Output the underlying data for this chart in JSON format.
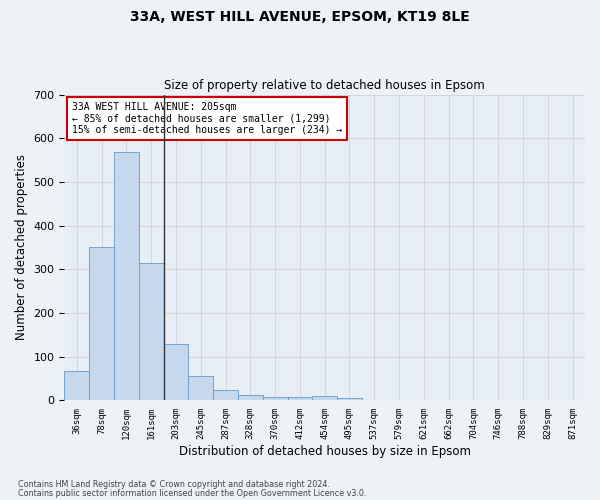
{
  "title": "33A, WEST HILL AVENUE, EPSOM, KT19 8LE",
  "subtitle": "Size of property relative to detached houses in Epsom",
  "xlabel": "Distribution of detached houses by size in Epsom",
  "ylabel": "Number of detached properties",
  "footnote1": "Contains HM Land Registry data © Crown copyright and database right 2024.",
  "footnote2": "Contains public sector information licensed under the Open Government Licence v3.0.",
  "annotation_line1": "33A WEST HILL AVENUE: 205sqm",
  "annotation_line2": "← 85% of detached houses are smaller (1,299)",
  "annotation_line3": "15% of semi-detached houses are larger (234) →",
  "bin_labels": [
    "36sqm",
    "78sqm",
    "120sqm",
    "161sqm",
    "203sqm",
    "245sqm",
    "287sqm",
    "328sqm",
    "370sqm",
    "412sqm",
    "454sqm",
    "495sqm",
    "537sqm",
    "579sqm",
    "621sqm",
    "662sqm",
    "704sqm",
    "746sqm",
    "788sqm",
    "829sqm",
    "871sqm"
  ],
  "bar_values": [
    68,
    350,
    568,
    315,
    130,
    55,
    25,
    13,
    7,
    7,
    10,
    5,
    0,
    0,
    0,
    0,
    0,
    0,
    0,
    0,
    0
  ],
  "bar_color": "#c5d8ed",
  "bar_edge_color": "#6699cc",
  "vline_x_index": 4,
  "vline_color": "#333333",
  "grid_color": "#cccccc",
  "bg_color": "#eef2f7",
  "plot_bg_color": "#e8eef5",
  "annotation_box_color": "#cc0000",
  "ylim": [
    0,
    700
  ],
  "yticks": [
    0,
    100,
    200,
    300,
    400,
    500,
    600,
    700
  ]
}
